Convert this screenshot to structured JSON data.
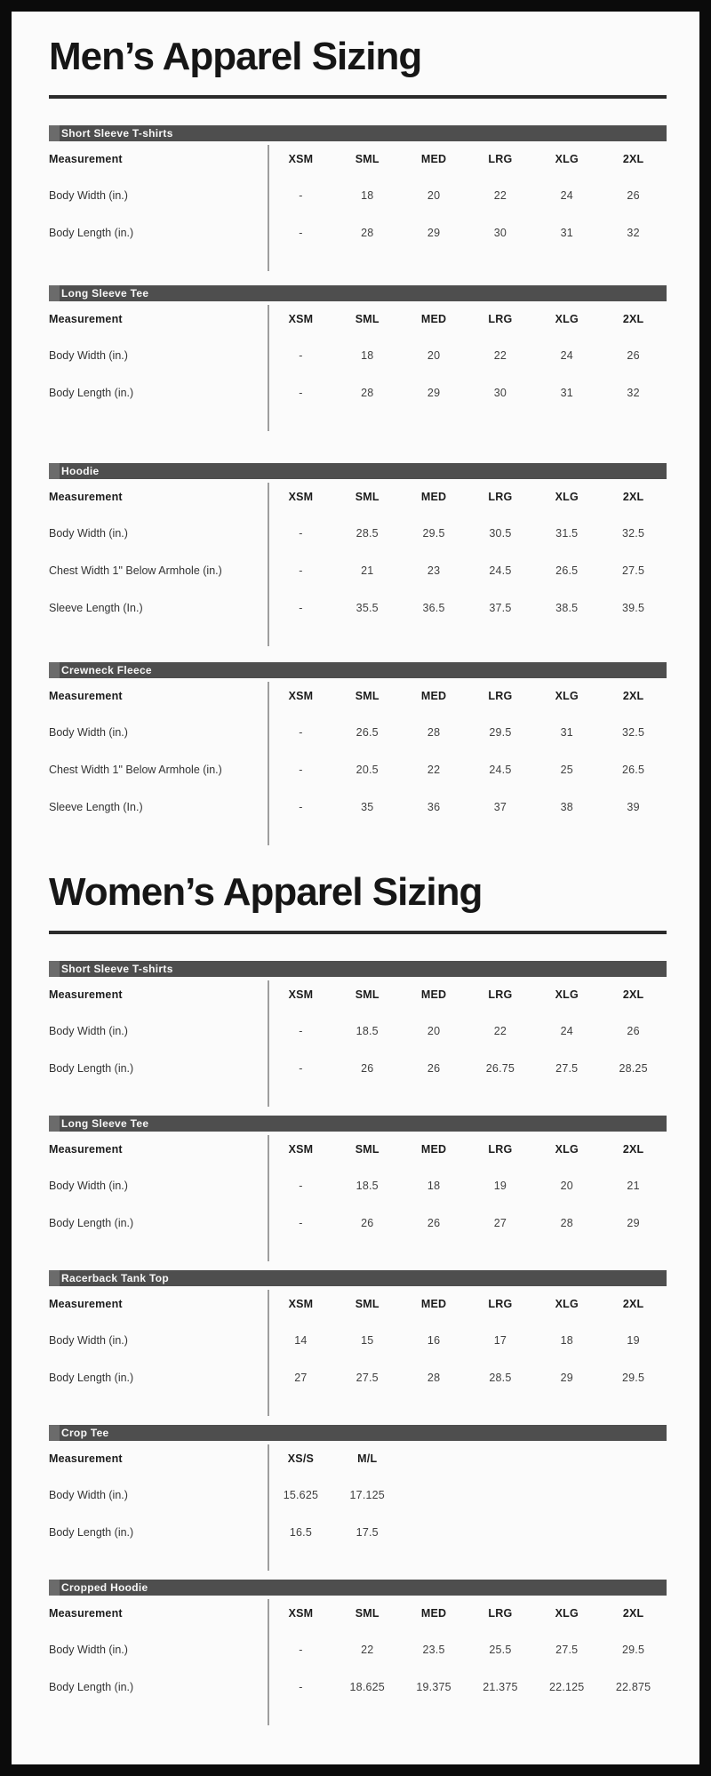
{
  "theme": {
    "frame_color": "#0b0b0b",
    "paper_color": "#fbfbfb",
    "title_color": "#161616",
    "bar_background": "#4e4e4e",
    "bar_text_color": "#f7f7f7",
    "divider_color": "#9e9e9e"
  },
  "sections": [
    {
      "title": "Men’s Apparel Sizing",
      "tables": [
        {
          "name": "Short Sleeve T-shirts",
          "measurement_header": "Measurement",
          "columns": [
            "XSM",
            "SML",
            "MED",
            "LRG",
            "XLG",
            "2XL"
          ],
          "rows": [
            {
              "label": "Body Width (in.)",
              "values": [
                "-",
                "18",
                "20",
                "22",
                "24",
                "26"
              ]
            },
            {
              "label": "Body Length (in.)",
              "values": [
                "-",
                "28",
                "29",
                "30",
                "31",
                "32"
              ]
            }
          ]
        },
        {
          "name": "Long Sleeve Tee",
          "measurement_header": "Measurement",
          "columns": [
            "XSM",
            "SML",
            "MED",
            "LRG",
            "XLG",
            "2XL"
          ],
          "rows": [
            {
              "label": "Body Width (in.)",
              "values": [
                "-",
                "18",
                "20",
                "22",
                "24",
                "26"
              ]
            },
            {
              "label": "Body Length (in.)",
              "values": [
                "-",
                "28",
                "29",
                "30",
                "31",
                "32"
              ]
            }
          ]
        },
        {
          "name": "Hoodie",
          "measurement_header": "Measurement",
          "columns": [
            "XSM",
            "SML",
            "MED",
            "LRG",
            "XLG",
            "2XL"
          ],
          "rows": [
            {
              "label": "Body Width (in.)",
              "values": [
                "-",
                "28.5",
                "29.5",
                "30.5",
                "31.5",
                "32.5"
              ]
            },
            {
              "label": "Chest Width 1\" Below Armhole  (in.)",
              "values": [
                "-",
                "21",
                "23",
                "24.5",
                "26.5",
                "27.5"
              ]
            },
            {
              "label": "Sleeve Length (In.)",
              "values": [
                "-",
                "35.5",
                "36.5",
                "37.5",
                "38.5",
                "39.5"
              ]
            }
          ]
        },
        {
          "name": "Crewneck Fleece",
          "measurement_header": "Measurement",
          "columns": [
            "XSM",
            "SML",
            "MED",
            "LRG",
            "XLG",
            "2XL"
          ],
          "rows": [
            {
              "label": "Body Width (in.)",
              "values": [
                "-",
                "26.5",
                "28",
                "29.5",
                "31",
                "32.5"
              ]
            },
            {
              "label": "Chest Width 1\" Below Armhole  (in.)",
              "values": [
                "-",
                "20.5",
                "22",
                "24.5",
                "25",
                "26.5"
              ]
            },
            {
              "label": "Sleeve Length (In.)",
              "values": [
                "-",
                "35",
                "36",
                "37",
                "38",
                "39"
              ]
            }
          ]
        }
      ]
    },
    {
      "title": "Women’s Apparel Sizing",
      "tables": [
        {
          "name": "Short Sleeve T-shirts",
          "measurement_header": "Measurement",
          "columns": [
            "XSM",
            "SML",
            "MED",
            "LRG",
            "XLG",
            "2XL"
          ],
          "rows": [
            {
              "label": "Body Width (in.)",
              "values": [
                "-",
                "18.5",
                "20",
                "22",
                "24",
                "26"
              ]
            },
            {
              "label": "Body Length (in.)",
              "values": [
                "-",
                "26",
                "26",
                "26.75",
                "27.5",
                "28.25"
              ]
            }
          ]
        },
        {
          "name": "Long Sleeve Tee",
          "measurement_header": "Measurement",
          "columns": [
            "XSM",
            "SML",
            "MED",
            "LRG",
            "XLG",
            "2XL"
          ],
          "rows": [
            {
              "label": "Body Width (in.)",
              "values": [
                "-",
                "18.5",
                "18",
                "19",
                "20",
                "21"
              ]
            },
            {
              "label": "Body Length (in.)",
              "values": [
                "-",
                "26",
                "26",
                "27",
                "28",
                "29"
              ]
            }
          ]
        },
        {
          "name": "Racerback Tank Top",
          "measurement_header": "Measurement",
          "columns": [
            "XSM",
            "SML",
            "MED",
            "LRG",
            "XLG",
            "2XL"
          ],
          "rows": [
            {
              "label": "Body Width (in.)",
              "values": [
                "14",
                "15",
                "16",
                "17",
                "18",
                "19"
              ]
            },
            {
              "label": "Body Length (in.)",
              "values": [
                "27",
                "27.5",
                "28",
                "28.5",
                "29",
                "29.5"
              ]
            }
          ]
        },
        {
          "name": "Crop Tee",
          "measurement_header": "Measurement",
          "columns": [
            "XS/S",
            "M/L",
            "",
            "",
            "",
            ""
          ],
          "rows": [
            {
              "label": "Body Width (in.)",
              "values": [
                "15.625",
                "17.125",
                "",
                "",
                "",
                ""
              ]
            },
            {
              "label": "Body Length (in.)",
              "values": [
                "16.5",
                "17.5",
                "",
                "",
                "",
                ""
              ]
            }
          ]
        },
        {
          "name": "Cropped Hoodie",
          "measurement_header": "Measurement",
          "columns": [
            "XSM",
            "SML",
            "MED",
            "LRG",
            "XLG",
            "2XL"
          ],
          "rows": [
            {
              "label": "Body Width (in.)",
              "values": [
                "-",
                "22",
                "23.5",
                "25.5",
                "27.5",
                "29.5"
              ]
            },
            {
              "label": "Body Length (in.)",
              "values": [
                "-",
                "18.625",
                "19.375",
                "21.375",
                "22.125",
                "22.875"
              ]
            }
          ]
        }
      ]
    }
  ]
}
